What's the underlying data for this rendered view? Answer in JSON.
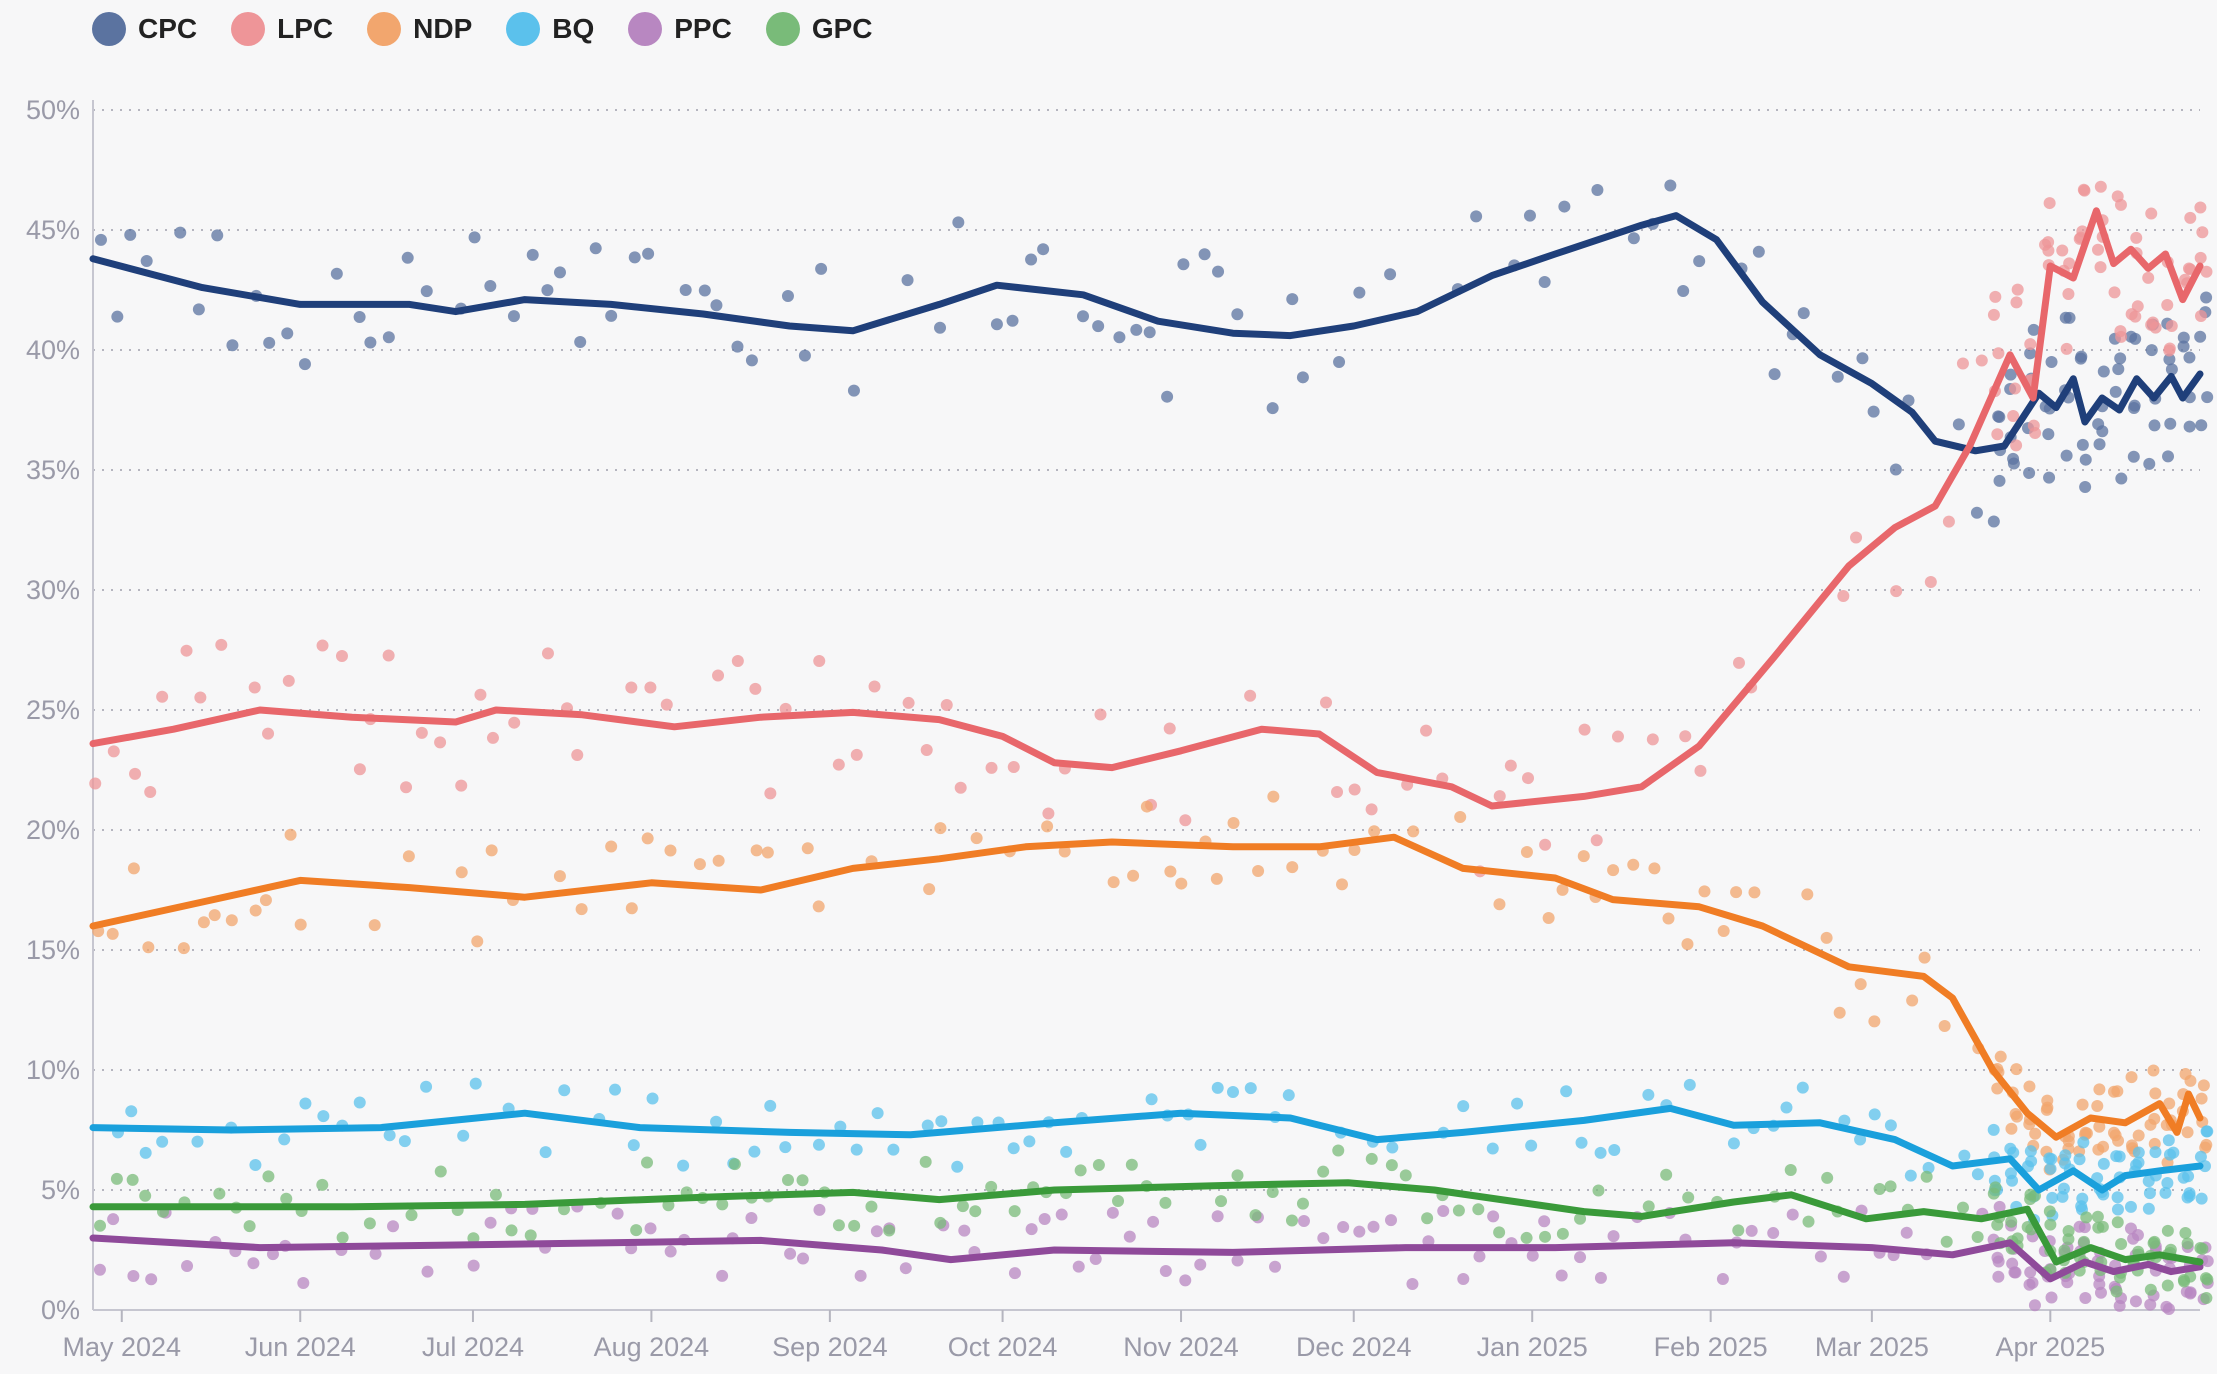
{
  "chart_data": {
    "type": "line",
    "title": "",
    "xlabel": "",
    "ylabel": "",
    "ylim": [
      0,
      50
    ],
    "y_ticks": [
      "0%",
      "5%",
      "10%",
      "15%",
      "20%",
      "25%",
      "30%",
      "35%",
      "40%",
      "45%",
      "50%"
    ],
    "x_ticks": [
      {
        "label": "May 2024",
        "date": "2024-05-01"
      },
      {
        "label": "Jun 2024",
        "date": "2024-06-01"
      },
      {
        "label": "Jul 2024",
        "date": "2024-07-01"
      },
      {
        "label": "Aug 2024",
        "date": "2024-08-01"
      },
      {
        "label": "Sep 2024",
        "date": "2024-09-01"
      },
      {
        "label": "Oct 2024",
        "date": "2024-10-01"
      },
      {
        "label": "Nov 2024",
        "date": "2024-11-01"
      },
      {
        "label": "Dec 2024",
        "date": "2024-12-01"
      },
      {
        "label": "Jan 2025",
        "date": "2025-01-01"
      },
      {
        "label": "Feb 2025",
        "date": "2025-02-01"
      },
      {
        "label": "Mar 2025",
        "date": "2025-03-01"
      },
      {
        "label": "Apr 2025",
        "date": "2025-04-01"
      }
    ],
    "x_range": [
      "2024-04-26",
      "2025-04-27"
    ],
    "grid": "horizontal-dotted",
    "legend_position": "top-left",
    "series": [
      {
        "name": "CPC",
        "color": "#1f3f7a",
        "dot_color": "#5b73a0",
        "points": [
          [
            "2024-04-26",
            43.8
          ],
          [
            "2024-05-15",
            42.6
          ],
          [
            "2024-06-01",
            41.9
          ],
          [
            "2024-06-20",
            41.9
          ],
          [
            "2024-06-28",
            41.6
          ],
          [
            "2024-07-10",
            42.1
          ],
          [
            "2024-07-25",
            41.9
          ],
          [
            "2024-08-10",
            41.5
          ],
          [
            "2024-08-25",
            41.0
          ],
          [
            "2024-09-05",
            40.8
          ],
          [
            "2024-09-20",
            41.9
          ],
          [
            "2024-09-30",
            42.7
          ],
          [
            "2024-10-15",
            42.3
          ],
          [
            "2024-10-28",
            41.2
          ],
          [
            "2024-11-10",
            40.7
          ],
          [
            "2024-11-20",
            40.6
          ],
          [
            "2024-12-01",
            41.0
          ],
          [
            "2024-12-12",
            41.6
          ],
          [
            "2024-12-25",
            43.1
          ],
          [
            "2025-01-05",
            44.0
          ],
          [
            "2025-01-20",
            45.2
          ],
          [
            "2025-01-26",
            45.6
          ],
          [
            "2025-02-02",
            44.6
          ],
          [
            "2025-02-10",
            42.0
          ],
          [
            "2025-02-20",
            39.8
          ],
          [
            "2025-03-01",
            38.6
          ],
          [
            "2025-03-08",
            37.4
          ],
          [
            "2025-03-12",
            36.2
          ],
          [
            "2025-03-19",
            35.8
          ],
          [
            "2025-03-24",
            36.0
          ],
          [
            "2025-03-30",
            38.2
          ],
          [
            "2025-04-02",
            37.6
          ],
          [
            "2025-04-05",
            38.8
          ],
          [
            "2025-04-07",
            37.0
          ],
          [
            "2025-04-10",
            38.0
          ],
          [
            "2025-04-13",
            37.5
          ],
          [
            "2025-04-16",
            38.8
          ],
          [
            "2025-04-19",
            38.0
          ],
          [
            "2025-04-22",
            38.9
          ],
          [
            "2025-04-24",
            38.0
          ],
          [
            "2025-04-27",
            39.0
          ]
        ]
      },
      {
        "name": "LPC",
        "color": "#e8676b",
        "dot_color": "#ee9598",
        "points": [
          [
            "2024-04-26",
            23.6
          ],
          [
            "2024-05-10",
            24.2
          ],
          [
            "2024-05-25",
            25.0
          ],
          [
            "2024-06-10",
            24.7
          ],
          [
            "2024-06-28",
            24.5
          ],
          [
            "2024-07-05",
            25.0
          ],
          [
            "2024-07-20",
            24.8
          ],
          [
            "2024-08-05",
            24.3
          ],
          [
            "2024-08-20",
            24.7
          ],
          [
            "2024-09-05",
            24.9
          ],
          [
            "2024-09-20",
            24.6
          ],
          [
            "2024-10-01",
            23.9
          ],
          [
            "2024-10-10",
            22.8
          ],
          [
            "2024-10-20",
            22.6
          ],
          [
            "2024-11-01",
            23.3
          ],
          [
            "2024-11-15",
            24.2
          ],
          [
            "2024-11-25",
            24.0
          ],
          [
            "2024-12-05",
            22.4
          ],
          [
            "2024-12-18",
            21.8
          ],
          [
            "2024-12-25",
            21.0
          ],
          [
            "2025-01-10",
            21.4
          ],
          [
            "2025-01-20",
            21.8
          ],
          [
            "2025-01-30",
            23.5
          ],
          [
            "2025-02-12",
            27.2
          ],
          [
            "2025-02-25",
            31.0
          ],
          [
            "2025-03-05",
            32.6
          ],
          [
            "2025-03-12",
            33.5
          ],
          [
            "2025-03-18",
            36.0
          ],
          [
            "2025-03-25",
            39.8
          ],
          [
            "2025-03-29",
            38.0
          ],
          [
            "2025-04-01",
            43.5
          ],
          [
            "2025-04-05",
            43.0
          ],
          [
            "2025-04-09",
            45.8
          ],
          [
            "2025-04-12",
            43.6
          ],
          [
            "2025-04-15",
            44.2
          ],
          [
            "2025-04-18",
            43.4
          ],
          [
            "2025-04-21",
            44.0
          ],
          [
            "2025-04-24",
            42.1
          ],
          [
            "2025-04-27",
            43.5
          ]
        ]
      },
      {
        "name": "NDP",
        "color": "#f07d25",
        "dot_color": "#f2a66e",
        "points": [
          [
            "2024-04-26",
            16.0
          ],
          [
            "2024-05-15",
            17.0
          ],
          [
            "2024-06-01",
            17.9
          ],
          [
            "2024-06-20",
            17.6
          ],
          [
            "2024-07-10",
            17.2
          ],
          [
            "2024-08-01",
            17.8
          ],
          [
            "2024-08-20",
            17.5
          ],
          [
            "2024-09-05",
            18.4
          ],
          [
            "2024-09-20",
            18.8
          ],
          [
            "2024-10-05",
            19.3
          ],
          [
            "2024-10-20",
            19.5
          ],
          [
            "2024-11-10",
            19.3
          ],
          [
            "2024-11-25",
            19.3
          ],
          [
            "2024-12-08",
            19.7
          ],
          [
            "2024-12-20",
            18.4
          ],
          [
            "2025-01-05",
            18.0
          ],
          [
            "2025-01-15",
            17.1
          ],
          [
            "2025-01-30",
            16.8
          ],
          [
            "2025-02-10",
            16.0
          ],
          [
            "2025-02-25",
            14.3
          ],
          [
            "2025-03-10",
            13.9
          ],
          [
            "2025-03-15",
            13.0
          ],
          [
            "2025-03-22",
            10.0
          ],
          [
            "2025-03-28",
            8.2
          ],
          [
            "2025-04-02",
            7.2
          ],
          [
            "2025-04-08",
            8.0
          ],
          [
            "2025-04-14",
            7.8
          ],
          [
            "2025-04-20",
            8.6
          ],
          [
            "2025-04-23",
            7.4
          ],
          [
            "2025-04-25",
            9.0
          ],
          [
            "2025-04-27",
            8.0
          ]
        ]
      },
      {
        "name": "BQ",
        "color": "#1aa0dc",
        "dot_color": "#5bc1ec",
        "points": [
          [
            "2024-04-26",
            7.6
          ],
          [
            "2024-05-20",
            7.5
          ],
          [
            "2024-06-15",
            7.6
          ],
          [
            "2024-07-10",
            8.2
          ],
          [
            "2024-07-30",
            7.6
          ],
          [
            "2024-08-25",
            7.4
          ],
          [
            "2024-09-15",
            7.3
          ],
          [
            "2024-10-10",
            7.8
          ],
          [
            "2024-11-01",
            8.2
          ],
          [
            "2024-11-20",
            8.0
          ],
          [
            "2024-12-05",
            7.1
          ],
          [
            "2024-12-20",
            7.4
          ],
          [
            "2025-01-10",
            7.9
          ],
          [
            "2025-01-25",
            8.4
          ],
          [
            "2025-02-05",
            7.7
          ],
          [
            "2025-02-20",
            7.8
          ],
          [
            "2025-03-05",
            7.1
          ],
          [
            "2025-03-15",
            6.0
          ],
          [
            "2025-03-25",
            6.3
          ],
          [
            "2025-03-30",
            5.0
          ],
          [
            "2025-04-05",
            5.8
          ],
          [
            "2025-04-10",
            5.0
          ],
          [
            "2025-04-14",
            5.6
          ],
          [
            "2025-04-20",
            5.8
          ],
          [
            "2025-04-27",
            6.0
          ]
        ]
      },
      {
        "name": "PPC",
        "color": "#8f4a9a",
        "dot_color": "#b887c1",
        "points": [
          [
            "2024-04-26",
            3.0
          ],
          [
            "2024-05-25",
            2.6
          ],
          [
            "2024-06-25",
            2.7
          ],
          [
            "2024-07-25",
            2.8
          ],
          [
            "2024-08-20",
            2.9
          ],
          [
            "2024-09-10",
            2.5
          ],
          [
            "2024-09-22",
            2.1
          ],
          [
            "2024-10-10",
            2.5
          ],
          [
            "2024-11-10",
            2.4
          ],
          [
            "2024-12-10",
            2.6
          ],
          [
            "2025-01-05",
            2.6
          ],
          [
            "2025-02-05",
            2.8
          ],
          [
            "2025-03-01",
            2.6
          ],
          [
            "2025-03-15",
            2.3
          ],
          [
            "2025-03-25",
            2.8
          ],
          [
            "2025-04-01",
            1.3
          ],
          [
            "2025-04-07",
            2.0
          ],
          [
            "2025-04-12",
            1.6
          ],
          [
            "2025-04-18",
            1.9
          ],
          [
            "2025-04-22",
            1.6
          ],
          [
            "2025-04-27",
            1.8
          ]
        ]
      },
      {
        "name": "GPC",
        "color": "#3a9a3a",
        "dot_color": "#79bb79",
        "points": [
          [
            "2024-04-26",
            4.3
          ],
          [
            "2024-06-10",
            4.3
          ],
          [
            "2024-07-10",
            4.4
          ],
          [
            "2024-08-10",
            4.7
          ],
          [
            "2024-09-05",
            4.9
          ],
          [
            "2024-09-20",
            4.6
          ],
          [
            "2024-10-10",
            5.0
          ],
          [
            "2024-11-10",
            5.2
          ],
          [
            "2024-11-30",
            5.3
          ],
          [
            "2024-12-15",
            5.0
          ],
          [
            "2025-01-10",
            4.1
          ],
          [
            "2025-01-20",
            3.9
          ],
          [
            "2025-02-05",
            4.5
          ],
          [
            "2025-02-15",
            4.8
          ],
          [
            "2025-02-28",
            3.8
          ],
          [
            "2025-03-10",
            4.1
          ],
          [
            "2025-03-20",
            3.8
          ],
          [
            "2025-03-28",
            4.2
          ],
          [
            "2025-04-02",
            2.0
          ],
          [
            "2025-04-08",
            2.6
          ],
          [
            "2025-04-14",
            2.1
          ],
          [
            "2025-04-20",
            2.3
          ],
          [
            "2025-04-27",
            2.0
          ]
        ]
      }
    ]
  }
}
